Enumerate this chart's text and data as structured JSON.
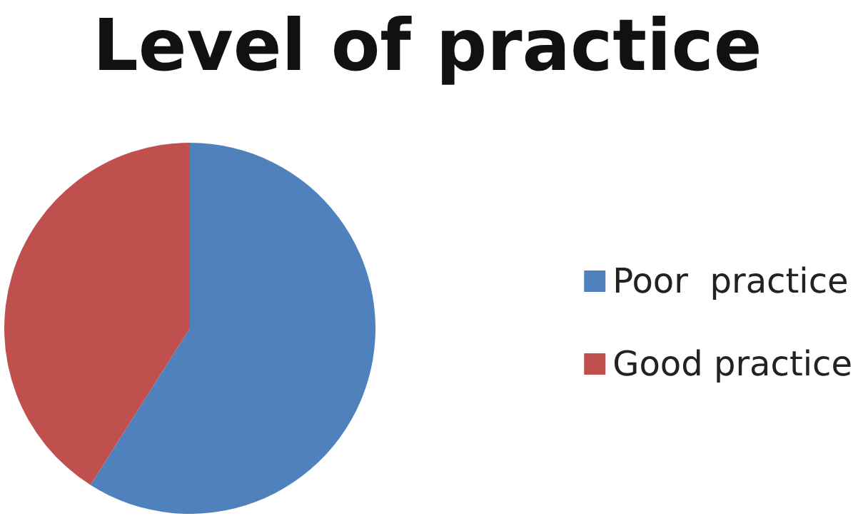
{
  "chart_data": {
    "type": "pie",
    "title": "Level of practice",
    "categories": [
      "Poor  practice",
      "Good practice"
    ],
    "values": [
      59,
      41
    ],
    "colors": [
      "#4f81bd",
      "#c0504d"
    ],
    "legend": "right"
  }
}
